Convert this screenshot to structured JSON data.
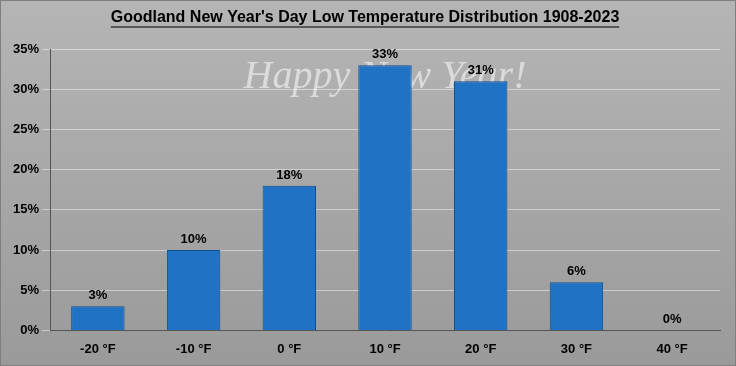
{
  "chart_data": {
    "type": "bar",
    "title": "Goodland New Year's Day Low Temperature Distribution 1908-2023",
    "annotations": [
      "Happy New Year!"
    ],
    "categories": [
      "-20 °F",
      "-10 °F",
      "0 °F",
      "10 °F",
      "20 °F",
      "30 °F",
      "40 °F"
    ],
    "values": [
      3,
      10,
      18,
      33,
      31,
      6,
      0
    ],
    "value_labels": [
      "3%",
      "10%",
      "18%",
      "33%",
      "31%",
      "6%",
      "0%"
    ],
    "color": "#1f72c4",
    "ylim": [
      0,
      35
    ],
    "yticks": [
      {
        "value": 0,
        "label": "0%"
      },
      {
        "value": 5,
        "label": "5%"
      },
      {
        "value": 10,
        "label": "10%"
      },
      {
        "value": 15,
        "label": "15%"
      },
      {
        "value": 20,
        "label": "20%"
      },
      {
        "value": 25,
        "label": "25%"
      },
      {
        "value": 30,
        "label": "30%"
      },
      {
        "value": 35,
        "label": "35%"
      }
    ],
    "grid": true,
    "data_labels": true
  }
}
